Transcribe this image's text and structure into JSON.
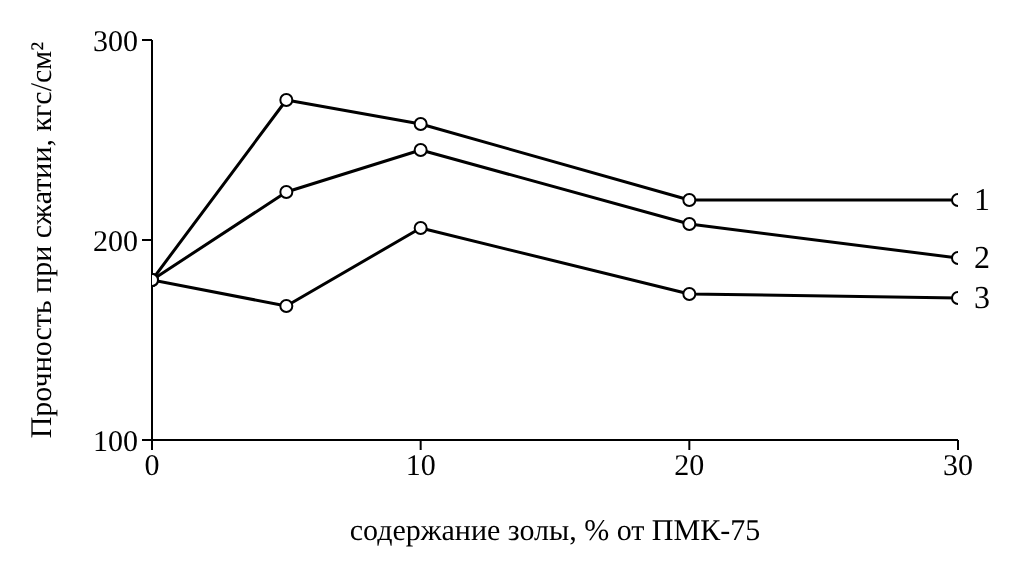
{
  "chart_data": {
    "type": "line",
    "xlabel": "содержание золы, % от ПМК-75",
    "ylabel": "Прочность при сжатии, кгс/см²",
    "x": [
      0,
      5,
      10,
      20,
      30
    ],
    "series": [
      {
        "name": "1",
        "color": "#000000",
        "values": [
          180,
          270,
          258,
          220,
          220
        ]
      },
      {
        "name": "2",
        "color": "#000000",
        "values": [
          180,
          224,
          245,
          208,
          191
        ]
      },
      {
        "name": "3",
        "color": "#000000",
        "values": [
          180,
          167,
          206,
          173,
          171
        ]
      }
    ],
    "xlim": [
      0,
      30
    ],
    "xticks": [
      0,
      10,
      20,
      30
    ],
    "ylim": [
      100,
      300
    ],
    "yticks": [
      100,
      200,
      300
    ],
    "grid": false,
    "legend": false,
    "marker": "circle",
    "line_style": "solid"
  }
}
